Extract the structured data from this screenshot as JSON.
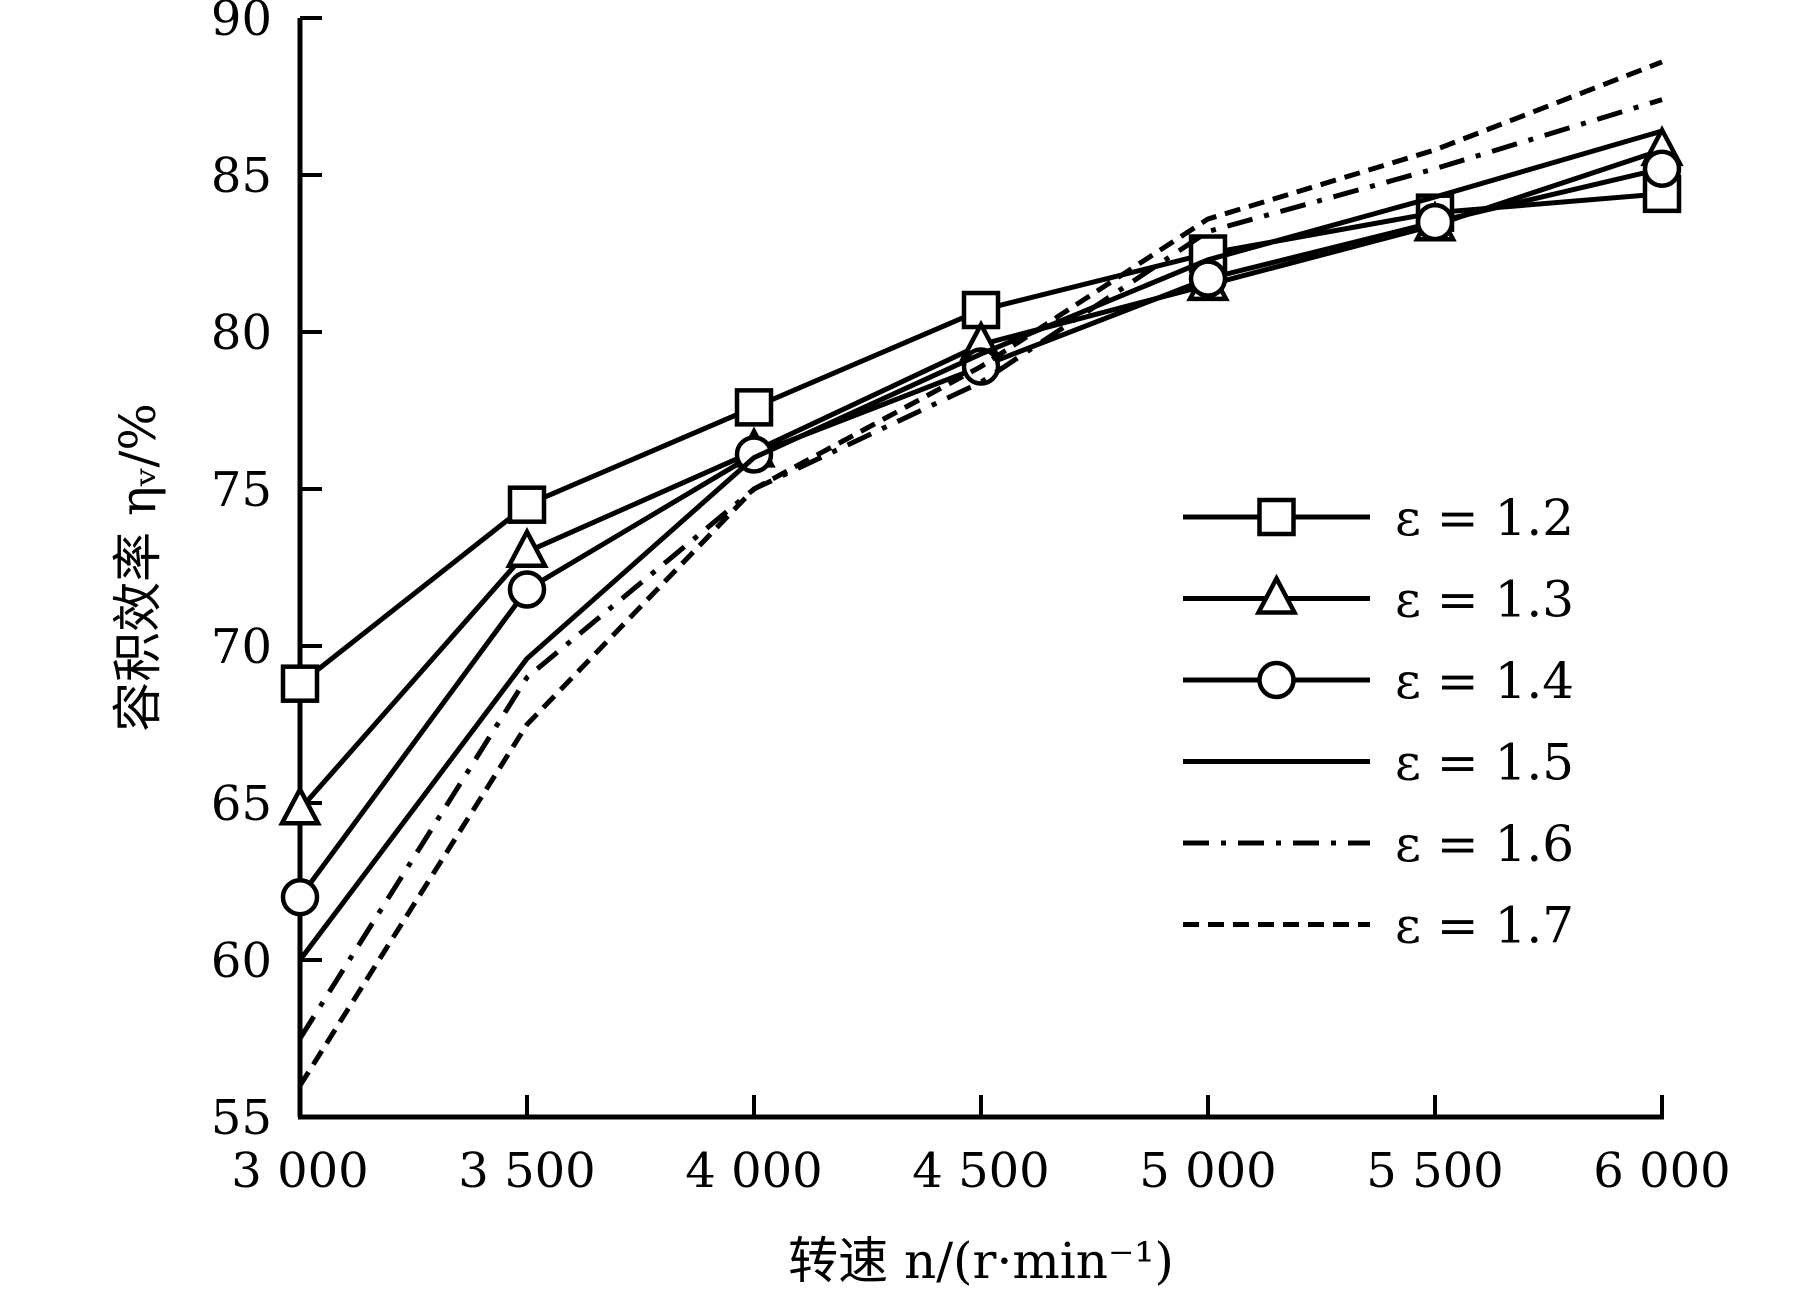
{
  "chart_data": {
    "type": "line",
    "title": "",
    "xlabel": "转速 n/(r·min⁻¹)",
    "ylabel": "容积效率 ηᵥ/%",
    "x": [
      3000,
      3500,
      4000,
      4500,
      5000,
      5500,
      6000
    ],
    "x_tick_labels": [
      "3 000",
      "3 500",
      "4 000",
      "4 500",
      "5 000",
      "5 500",
      "6 000"
    ],
    "y_ticks": [
      55,
      60,
      65,
      70,
      75,
      80,
      85,
      90
    ],
    "xlim": [
      3000,
      6000
    ],
    "ylim": [
      55,
      90
    ],
    "grid": false,
    "legend_position": "center-right",
    "series": [
      {
        "name": "ε = 1.2",
        "marker": "square",
        "dash": "solid",
        "values": [
          68.8,
          74.5,
          77.6,
          80.7,
          82.5,
          83.8,
          84.4
        ]
      },
      {
        "name": "ε = 1.3",
        "marker": "triangle",
        "dash": "solid",
        "values": [
          64.8,
          73.0,
          76.2,
          79.6,
          81.5,
          83.4,
          85.8
        ]
      },
      {
        "name": "ε = 1.4",
        "marker": "circle",
        "dash": "solid",
        "values": [
          62.0,
          71.8,
          76.1,
          78.9,
          81.7,
          83.5,
          85.2
        ]
      },
      {
        "name": "ε = 1.5",
        "marker": "none",
        "dash": "solid",
        "values": [
          60.0,
          69.6,
          76.0,
          79.3,
          82.3,
          84.3,
          86.4
        ]
      },
      {
        "name": "ε = 1.6",
        "marker": "none",
        "dash": "dashdot",
        "values": [
          57.5,
          69.0,
          75.0,
          78.4,
          83.2,
          85.2,
          87.4
        ]
      },
      {
        "name": "ε = 1.7",
        "marker": "none",
        "dash": "dashed",
        "values": [
          56.0,
          67.5,
          75.0,
          78.9,
          83.6,
          85.8,
          88.6
        ]
      }
    ]
  }
}
